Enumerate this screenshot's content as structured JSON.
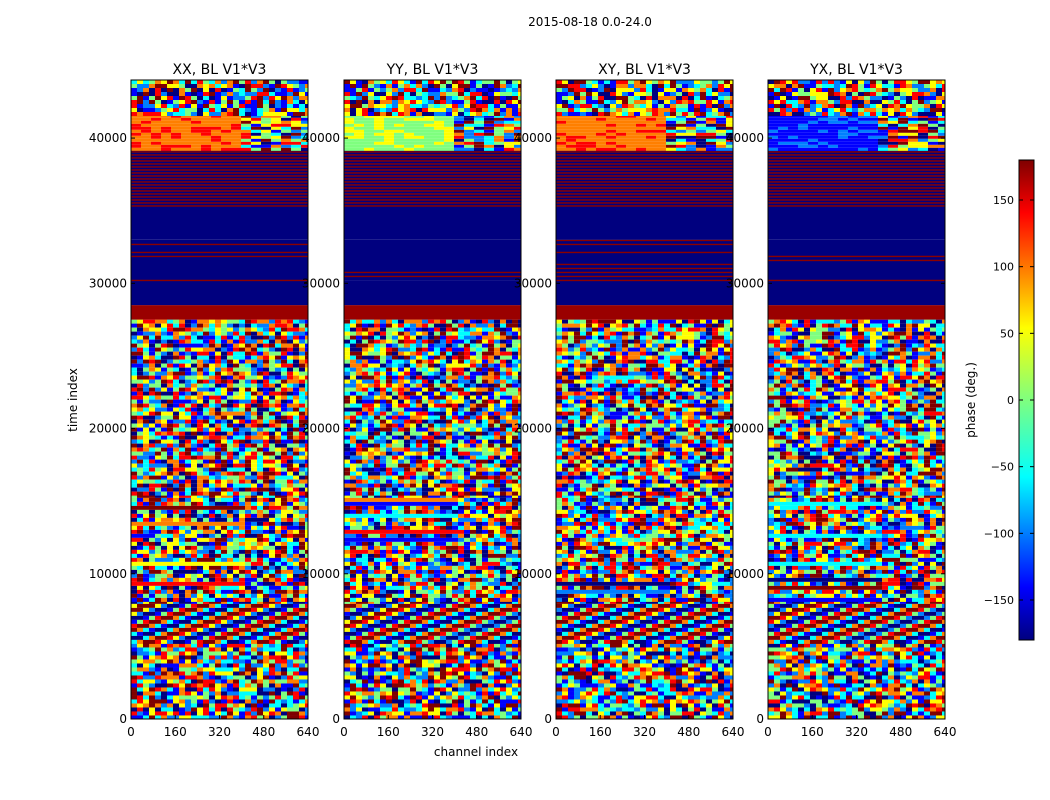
{
  "figure": {
    "title": "2015-08-18 0.0-24.0"
  },
  "chart_data": {
    "type": "heatmap",
    "xlabel": "channel index",
    "ylabel": "time index",
    "xlim": [
      0,
      640
    ],
    "ylim": [
      0,
      44000
    ],
    "x_ticks": [
      "0",
      "160",
      "320",
      "480",
      "640"
    ],
    "y_ticks": [
      "0",
      "10000",
      "20000",
      "30000",
      "40000"
    ],
    "panels": [
      {
        "title": "XX, BL V1*V3",
        "pol": "XX"
      },
      {
        "title": "YY, BL V1*V3",
        "pol": "YY"
      },
      {
        "title": "XY, BL V1*V3",
        "pol": "XY"
      },
      {
        "title": "YX, BL V1*V3",
        "pol": "YX"
      }
    ],
    "colorbar": {
      "label": "phase (deg.)",
      "range": [
        -180,
        180
      ],
      "ticks": [
        "150",
        "100",
        "50",
        "0",
        "−50",
        "−100",
        "−150"
      ],
      "colormap": "jet",
      "colors": [
        "#00007f",
        "#0000ff",
        "#007fff",
        "#00ffff",
        "#7fff7f",
        "#ffff00",
        "#ff7f00",
        "#ff0000",
        "#7f0000"
      ]
    },
    "bands": [
      {
        "from": 0,
        "to": 5200,
        "kind": "noise"
      },
      {
        "from": 5200,
        "to": 8200,
        "kind": "fringe"
      },
      {
        "from": 8200,
        "to": 15500,
        "kind": "noise_streaks"
      },
      {
        "from": 15500,
        "to": 27500,
        "kind": "noise"
      },
      {
        "from": 27500,
        "to": 28500,
        "kind": "red"
      },
      {
        "from": 28500,
        "to": 30200,
        "kind": "navy"
      },
      {
        "from": 30200,
        "to": 33000,
        "kind": "navy_red_lines"
      },
      {
        "from": 33000,
        "to": 35300,
        "kind": "navy"
      },
      {
        "from": 35300,
        "to": 39300,
        "kind": "red_navy_stripes"
      },
      {
        "from": 39300,
        "to": 41600,
        "kind": "gradient"
      },
      {
        "from": 41600,
        "to": 44000,
        "kind": "noise"
      }
    ]
  }
}
